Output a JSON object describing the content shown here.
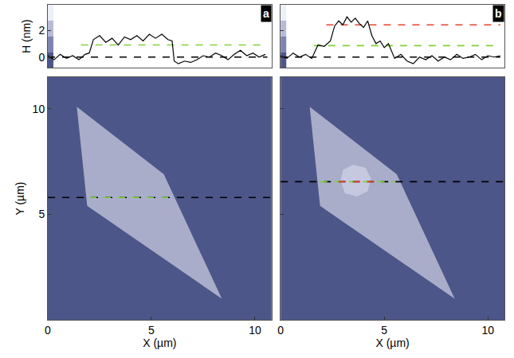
{
  "chart_data": [
    {
      "type": "line",
      "annotations": [
        "a"
      ],
      "y_label": "H (nm)",
      "xlim": [
        0,
        10.8
      ],
      "ylim": [
        -0.8,
        3.9
      ],
      "yticks": [
        0,
        2
      ],
      "tick_labels": "y",
      "series": [
        {
          "color": "#000000",
          "line_style": "dashed",
          "x": [
            0,
            10.6
          ],
          "values": [
            0,
            0
          ]
        },
        {
          "color": "#7fd13b",
          "line_style": "dashed",
          "x": [
            1.6,
            10.6
          ],
          "values": [
            0.9,
            0.9
          ]
        },
        {
          "color": "#000000",
          "line_style": "solid",
          "x": [
            0,
            0.3,
            0.6,
            0.9,
            1.2,
            1.5,
            1.8,
            2.0,
            2.2,
            2.5,
            2.8,
            3.1,
            3.4,
            3.7,
            4.0,
            4.3,
            4.6,
            4.9,
            5.2,
            5.5,
            5.8,
            6.0,
            6.1,
            6.3,
            6.6,
            6.9,
            7.2,
            7.5,
            7.8,
            8.1,
            8.4,
            8.7,
            9.0,
            9.3,
            9.6,
            9.9,
            10.2,
            10.5
          ],
          "values": [
            0.1,
            -0.2,
            0.2,
            -0.1,
            0.1,
            -0.2,
            0.2,
            0.3,
            1.3,
            1.6,
            1.1,
            1.4,
            0.9,
            1.5,
            1.3,
            1.6,
            1.2,
            1.7,
            1.4,
            1.7,
            1.3,
            1.2,
            -0.3,
            -0.5,
            -0.3,
            -0.4,
            -0.2,
            0.1,
            0.0,
            0.3,
            0.1,
            -0.2,
            0.2,
            0.5,
            0.1,
            0.3,
            0.0,
            0.2
          ]
        }
      ]
    },
    {
      "type": "image",
      "x_label": "X (µm)",
      "y_label": "Y (µm)",
      "color": "#4c5688",
      "xlim": [
        0,
        10.8
      ],
      "ylim": [
        0,
        11.5
      ],
      "xticks": [
        0,
        5,
        10
      ],
      "yticks": [
        5,
        10
      ],
      "series": [
        {
          "type": "fill",
          "color": "#a9adc9",
          "x": [
            1.4,
            5.6,
            8.4,
            1.9
          ],
          "values": [
            10.1,
            6.9,
            1.0,
            5.4
          ]
        },
        {
          "color": "#000000",
          "line_style": "dashed",
          "x": [
            0,
            10.8
          ],
          "values": [
            5.8,
            5.8
          ]
        },
        {
          "color": "#7fd13b",
          "line_style": "dashed",
          "x": [
            2.0,
            5.9
          ],
          "values": [
            5.8,
            5.8
          ]
        }
      ]
    },
    {
      "type": "line",
      "annotations": [
        "b"
      ],
      "xlim": [
        0,
        10.8
      ],
      "ylim": [
        -0.8,
        3.9
      ],
      "yticks": [
        0,
        2
      ],
      "tick_labels": false,
      "series": [
        {
          "color": "#000000",
          "line_style": "dashed",
          "x": [
            0,
            10.6
          ],
          "values": [
            0,
            0
          ]
        },
        {
          "color": "#7fd13b",
          "line_style": "dashed",
          "x": [
            1.6,
            10.6
          ],
          "values": [
            0.85,
            0.85
          ]
        },
        {
          "color": "#e8412c",
          "line_style": "dashed",
          "x": [
            2.2,
            10.6
          ],
          "values": [
            2.4,
            2.4
          ]
        },
        {
          "color": "#000000",
          "line_style": "solid",
          "x": [
            0,
            0.3,
            0.6,
            0.9,
            1.2,
            1.5,
            1.8,
            2.1,
            2.4,
            2.6,
            2.8,
            3.0,
            3.2,
            3.4,
            3.6,
            3.8,
            4.0,
            4.2,
            4.4,
            4.6,
            4.8,
            5.0,
            5.2,
            5.5,
            5.8,
            6.1,
            6.4,
            6.7,
            7.0,
            7.3,
            7.6,
            7.9,
            8.2,
            8.5,
            8.8,
            9.1,
            9.4,
            9.7,
            10.0,
            10.3,
            10.6
          ],
          "values": [
            0.1,
            -0.1,
            0.3,
            0.0,
            0.2,
            -0.1,
            0.9,
            0.8,
            1.2,
            2.3,
            2.7,
            2.4,
            3.0,
            2.6,
            2.9,
            2.5,
            2.2,
            2.7,
            1.6,
            1.0,
            1.2,
            0.7,
            1.0,
            -0.1,
            0.2,
            -0.3,
            -0.5,
            0.0,
            -0.2,
            0.1,
            -0.3,
            0.0,
            -0.2,
            0.2,
            -0.1,
            0.0,
            0.2,
            -0.2,
            0.1,
            0.0,
            0.1
          ]
        }
      ]
    },
    {
      "type": "image",
      "x_label": "X (µm)",
      "color": "#4c5688",
      "xlim": [
        0,
        10.8
      ],
      "ylim": [
        0,
        11.5
      ],
      "xticks": [
        0,
        5,
        10
      ],
      "yticks": [
        5,
        10
      ],
      "tick_labels": "x",
      "series": [
        {
          "type": "fill",
          "color": "#a9adc9",
          "x": [
            1.4,
            5.6,
            8.4,
            1.9
          ],
          "values": [
            10.1,
            6.9,
            1.0,
            5.4
          ]
        },
        {
          "type": "fill",
          "color": "#c5c8df",
          "x": [
            2.9,
            3.0,
            3.5,
            4.1,
            4.35,
            4.2,
            3.7,
            3.1
          ],
          "values": [
            6.6,
            7.1,
            7.35,
            7.2,
            6.7,
            6.1,
            5.85,
            6.0
          ]
        },
        {
          "color": "#000000",
          "line_style": "dashed",
          "x": [
            0,
            10.8
          ],
          "values": [
            6.55,
            6.55
          ]
        },
        {
          "color": "#7fd13b",
          "line_style": "dashed",
          "x": [
            1.9,
            5.5
          ],
          "values": [
            6.55,
            6.55
          ]
        },
        {
          "color": "#e8412c",
          "line_style": "dashed",
          "x": [
            2.8,
            4.5
          ],
          "values": [
            6.55,
            6.55
          ]
        }
      ]
    }
  ]
}
